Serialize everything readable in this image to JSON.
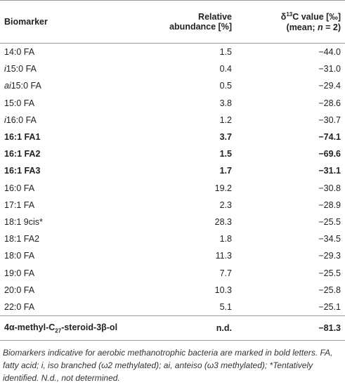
{
  "table": {
    "header": {
      "biomarker": "Biomarker",
      "abundance": [
        "Relative",
        "abundance [%]"
      ],
      "d13c": {
        "delta": "δ",
        "sup": "13",
        "rest": "C value [‰]",
        "line2_a": "(mean; ",
        "line2_n": "n",
        "line2_b": " = 2)"
      }
    },
    "rows": [
      {
        "biomarker": "14:0 FA",
        "abundance": "1.5",
        "d13c": "−44.0"
      },
      {
        "prefix": "i",
        "biomarker": "15:0 FA",
        "abundance": "0.4",
        "d13c": "−31.0"
      },
      {
        "prefix": "ai",
        "biomarker": "15:0 FA",
        "abundance": "0.5",
        "d13c": "−29.4"
      },
      {
        "biomarker": "15:0 FA",
        "abundance": "3.8",
        "d13c": "−28.6"
      },
      {
        "prefix": "i",
        "biomarker": "16:0 FA",
        "abundance": "1.2",
        "d13c": "−30.7"
      },
      {
        "biomarker": "16:1 FA1",
        "abundance": "3.7",
        "d13c": "−74.1",
        "bold": true
      },
      {
        "biomarker": "16:1 FA2",
        "abundance": "1.5",
        "d13c": "−69.6",
        "bold": true
      },
      {
        "biomarker": "16:1 FA3",
        "abundance": "1.7",
        "d13c": "−31.1",
        "bold": true
      },
      {
        "biomarker": "16:0 FA",
        "abundance": "19.2",
        "d13c": "−30.8"
      },
      {
        "biomarker": "17:1 FA",
        "abundance": "2.3",
        "d13c": "−28.9"
      },
      {
        "biomarker": "18:1 9cis*",
        "abundance": "28.3",
        "d13c": "−25.5"
      },
      {
        "biomarker": "18:1 FA2",
        "abundance": "1.8",
        "d13c": "−34.5"
      },
      {
        "biomarker": "18:0 FA",
        "abundance": "11.3",
        "d13c": "−29.3"
      },
      {
        "biomarker": "19:0 FA",
        "abundance": "7.7",
        "d13c": "−25.5"
      },
      {
        "biomarker": "20:0 FA",
        "abundance": "10.3",
        "d13c": "−25.8"
      },
      {
        "biomarker": "22:0 FA",
        "abundance": "5.1",
        "d13c": "−25.1"
      }
    ],
    "last_row": {
      "biomarker_a": "4α-methyl-C",
      "biomarker_sub": "27",
      "biomarker_b": "-steroid-3β-ol",
      "abundance": "n.d.",
      "d13c": "−81.3",
      "bold": true
    },
    "footnote": "Biomarkers indicative for aerobic methanotrophic bacteria are marked in bold letters. FA, fatty acid; i, iso branched (ω2 methylated); ai, anteiso (ω3 methylated); *Tentatively identified. N.d., not determined."
  }
}
